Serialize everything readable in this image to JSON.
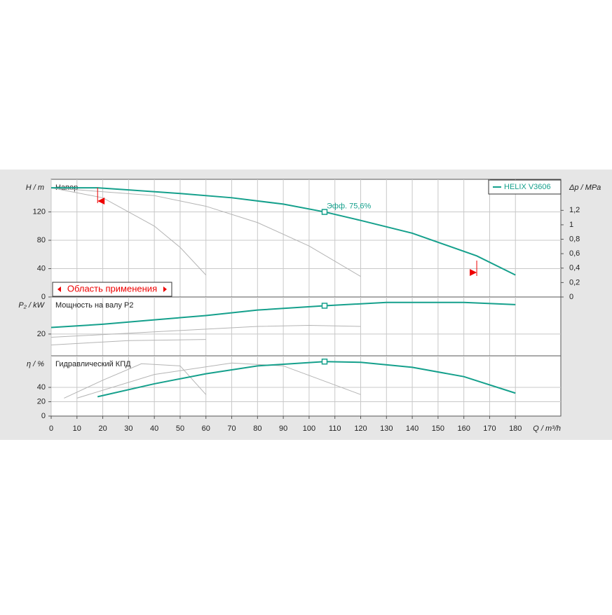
{
  "chart_data": [
    {
      "type": "line",
      "ylabel": "H / m",
      "y2label": "Δp / MPa",
      "panel_label": "Напор",
      "xlim": [
        0,
        197.6
      ],
      "ylim": [
        0,
        166
      ],
      "yticks": [
        0,
        40,
        80,
        120
      ],
      "y2lim": [
        0,
        1.63
      ],
      "y2ticks": [
        0,
        {
          "value": 0.2,
          "label": "0,2"
        },
        {
          "value": 0.4,
          "label": "0,4"
        },
        {
          "value": 0.6,
          "label": "0,6"
        },
        {
          "value": 0.8,
          "label": "0,8"
        },
        1,
        {
          "value": 1.2,
          "label": "1,2"
        }
      ],
      "series": [
        {
          "color": "#b4b4b4",
          "x": [
            0,
            20,
            40,
            50,
            60
          ],
          "values": [
            154,
            140,
            100,
            70,
            31
          ]
        },
        {
          "color": "#b4b4b4",
          "x": [
            0,
            40,
            60,
            80,
            100,
            120
          ],
          "values": [
            154,
            143,
            128,
            105,
            72,
            29
          ]
        },
        {
          "name": "HELIX V3606",
          "color": "#15a08c",
          "x": [
            0,
            18,
            30,
            50,
            70,
            90,
            106,
            120,
            140,
            165,
            180
          ],
          "values": [
            154,
            154,
            151,
            146,
            140,
            131,
            120,
            108,
            90,
            58,
            31
          ]
        }
      ],
      "duty_point": {
        "x": 106,
        "value": 120
      },
      "duty_label": "Эфф.  75,6%",
      "application_range": [
        18,
        165
      ],
      "application_range_label": "Область применения"
    },
    {
      "type": "line",
      "ylabel": "P₂ / kW",
      "panel_label": "Мощность на валу P2",
      "xlim": [
        0,
        197.6
      ],
      "ylim": [
        0,
        54
      ],
      "yticks": [
        20
      ],
      "series": [
        {
          "color": "#b4b4b4",
          "x": [
            0,
            30,
            60
          ],
          "values": [
            10,
            14,
            15
          ]
        },
        {
          "color": "#b4b4b4",
          "x": [
            0,
            40,
            80,
            100,
            120
          ],
          "values": [
            17,
            22,
            27,
            28,
            27
          ]
        },
        {
          "color": "#15a08c",
          "x": [
            0,
            20,
            40,
            60,
            80,
            106,
            130,
            160,
            180
          ],
          "values": [
            26,
            29,
            33,
            37,
            42,
            46,
            49,
            49,
            47
          ]
        }
      ],
      "duty_point": {
        "x": 106,
        "value": 46
      }
    },
    {
      "type": "line",
      "ylabel": "η / %",
      "xlabel": "Q / m³/h",
      "panel_label": "Гидравлический КПД",
      "xlim": [
        0,
        197.6
      ],
      "ylim": [
        0,
        84
      ],
      "yticks": [
        0,
        20,
        40
      ],
      "xticks": [
        0,
        10,
        20,
        30,
        40,
        50,
        60,
        70,
        80,
        90,
        100,
        110,
        120,
        130,
        140,
        150,
        160,
        170,
        180
      ],
      "series": [
        {
          "color": "#b4b4b4",
          "x": [
            5,
            20,
            35,
            50,
            60
          ],
          "values": [
            25,
            50,
            73,
            70,
            30
          ]
        },
        {
          "color": "#b4b4b4",
          "x": [
            10,
            40,
            70,
            90,
            120
          ],
          "values": [
            25,
            58,
            74,
            70,
            30
          ]
        },
        {
          "color": "#15a08c",
          "x": [
            18,
            40,
            60,
            80,
            106,
            120,
            140,
            160,
            180
          ],
          "values": [
            27,
            45,
            59,
            70,
            76,
            75,
            68,
            55,
            32
          ]
        }
      ],
      "duty_point": {
        "x": 106,
        "value": 76
      }
    }
  ]
}
